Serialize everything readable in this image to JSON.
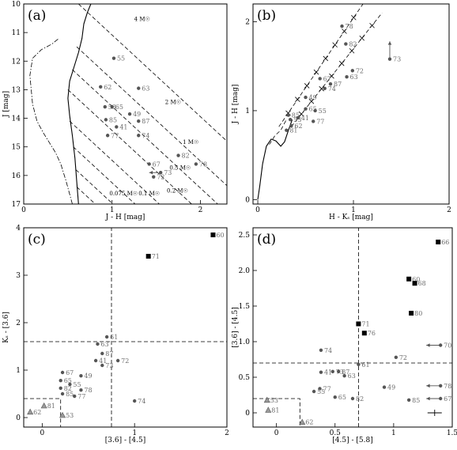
{
  "chart_data": [
    {
      "type": "scatter",
      "panel": "(a)",
      "xlabel": "J - H [mag]",
      "ylabel": "J [mag]",
      "xlim": [
        0,
        2.3
      ],
      "ylim": [
        17,
        10
      ],
      "xticks": [
        0,
        1,
        2
      ],
      "yticks": [
        10,
        11,
        12,
        13,
        14,
        15,
        16,
        17
      ],
      "mass_labels": [
        {
          "text": "4 M☉",
          "x": 1.25,
          "y": 10.6
        },
        {
          "text": "2 M☉",
          "x": 1.6,
          "y": 13.5
        },
        {
          "text": "1 M☉",
          "x": 1.8,
          "y": 14.9
        },
        {
          "text": "0.5 M☉",
          "x": 1.65,
          "y": 15.8
        },
        {
          "text": "0.2 M☉",
          "x": 1.62,
          "y": 16.6
        },
        {
          "text": "0.1 M☉",
          "x": 1.3,
          "y": 16.7
        },
        {
          "text": "0.075 M☉",
          "x": 0.97,
          "y": 16.7
        }
      ],
      "points": [
        {
          "label": "55",
          "x": 1.02,
          "y": 11.9
        },
        {
          "label": "62",
          "x": 0.87,
          "y": 12.9
        },
        {
          "label": "63",
          "x": 1.3,
          "y": 12.95
        },
        {
          "label": "53",
          "x": 0.92,
          "y": 13.6
        },
        {
          "label": "65",
          "x": 1.0,
          "y": 13.6
        },
        {
          "label": "49",
          "x": 1.2,
          "y": 13.85
        },
        {
          "label": "85",
          "x": 0.93,
          "y": 14.05
        },
        {
          "label": "87",
          "x": 1.3,
          "y": 14.1
        },
        {
          "label": "41",
          "x": 1.05,
          "y": 14.3
        },
        {
          "label": "77",
          "x": 0.95,
          "y": 14.6
        },
        {
          "label": "74",
          "x": 1.3,
          "y": 14.6
        },
        {
          "label": "82",
          "x": 1.75,
          "y": 15.3
        },
        {
          "label": "67",
          "x": 1.42,
          "y": 15.6
        },
        {
          "label": "78",
          "x": 1.95,
          "y": 15.6
        },
        {
          "label": "73",
          "x": 1.55,
          "y": 15.9
        },
        {
          "label": "72",
          "x": 1.47,
          "y": 16.05
        }
      ]
    },
    {
      "type": "scatter",
      "panel": "(b)",
      "xlabel": "H - Kₛ [mag]",
      "ylabel": "J - H [mag]",
      "xlim": [
        -0.05,
        2
      ],
      "ylim": [
        -0.05,
        2.2
      ],
      "xticks": [
        0,
        1,
        2
      ],
      "yticks": [
        0,
        1,
        2
      ],
      "points": [
        {
          "label": "78",
          "x": 0.88,
          "y": 1.95
        },
        {
          "label": "82",
          "x": 0.92,
          "y": 1.75
        },
        {
          "label": "72",
          "x": 0.99,
          "y": 1.45
        },
        {
          "label": "63",
          "x": 0.93,
          "y": 1.38
        },
        {
          "label": "73",
          "x": 1.38,
          "y": 1.58
        },
        {
          "label": "67",
          "x": 0.65,
          "y": 1.36
        },
        {
          "label": "74",
          "x": 0.7,
          "y": 1.25
        },
        {
          "label": "87",
          "x": 0.76,
          "y": 1.3
        },
        {
          "label": "49",
          "x": 0.5,
          "y": 1.15
        },
        {
          "label": "65",
          "x": 0.5,
          "y": 1.02
        },
        {
          "label": "55",
          "x": 0.6,
          "y": 1.0
        },
        {
          "label": "85",
          "x": 0.32,
          "y": 0.95
        },
        {
          "label": "53",
          "x": 0.34,
          "y": 0.9
        },
        {
          "label": "41",
          "x": 0.42,
          "y": 0.92
        },
        {
          "label": "77",
          "x": 0.58,
          "y": 0.88
        },
        {
          "label": "62",
          "x": 0.35,
          "y": 0.83
        },
        {
          "label": "81",
          "x": 0.3,
          "y": 0.78
        }
      ]
    },
    {
      "type": "scatter",
      "panel": "(c)",
      "xlabel": "[3.6] - [4.5]",
      "ylabel": "Kₛ - [3.6]",
      "xlim": [
        -0.2,
        2
      ],
      "ylim": [
        -0.2,
        4
      ],
      "xticks": [
        0,
        1,
        2
      ],
      "yticks": [
        0,
        1,
        2,
        3,
        4
      ],
      "points": [
        {
          "label": "60",
          "x": 1.85,
          "y": 3.85,
          "marker": "square"
        },
        {
          "label": "71",
          "x": 1.15,
          "y": 3.4,
          "marker": "square"
        },
        {
          "label": "61",
          "x": 0.7,
          "y": 1.7
        },
        {
          "label": "63",
          "x": 0.6,
          "y": 1.55
        },
        {
          "label": "87",
          "x": 0.65,
          "y": 1.35
        },
        {
          "label": "41",
          "x": 0.58,
          "y": 1.2
        },
        {
          "label": "72",
          "x": 0.82,
          "y": 1.2
        },
        {
          "label": "73",
          "x": 0.65,
          "y": 1.1
        },
        {
          "label": "67",
          "x": 0.22,
          "y": 0.95
        },
        {
          "label": "49",
          "x": 0.42,
          "y": 0.88
        },
        {
          "label": "65",
          "x": 0.2,
          "y": 0.78
        },
        {
          "label": "55",
          "x": 0.3,
          "y": 0.7
        },
        {
          "label": "82",
          "x": 0.2,
          "y": 0.62
        },
        {
          "label": "78",
          "x": 0.42,
          "y": 0.58
        },
        {
          "label": "85",
          "x": 0.22,
          "y": 0.5
        },
        {
          "label": "77",
          "x": 0.35,
          "y": 0.45
        },
        {
          "label": "74",
          "x": 1.0,
          "y": 0.35
        },
        {
          "label": "81",
          "x": 0.02,
          "y": 0.25,
          "marker": "triangle"
        },
        {
          "label": "62",
          "x": -0.13,
          "y": 0.12,
          "marker": "triangle"
        },
        {
          "label": "53",
          "x": 0.22,
          "y": 0.05,
          "marker": "triangle"
        }
      ]
    },
    {
      "type": "scatter",
      "panel": "(d)",
      "xlabel": "[4.5] - [5.8]",
      "ylabel": "[3.6] - [4.5]",
      "xlim": [
        -0.2,
        1.5
      ],
      "ylim": [
        -0.2,
        2.6
      ],
      "xticks": [
        0,
        0.5,
        1,
        1.5
      ],
      "xticklabels": [
        "0",
        "0.5",
        "1",
        "1.5"
      ],
      "yticks": [
        0,
        0.5,
        1,
        1.5,
        2,
        2.5
      ],
      "yticklabels": [
        "0",
        "0.5",
        "1.0",
        "1.5",
        "2.0",
        "2.5"
      ],
      "points": [
        {
          "label": "66",
          "x": 1.38,
          "y": 2.4,
          "marker": "square"
        },
        {
          "label": "60",
          "x": 1.13,
          "y": 1.88,
          "marker": "square"
        },
        {
          "label": "68",
          "x": 1.18,
          "y": 1.82,
          "marker": "square"
        },
        {
          "label": "80",
          "x": 1.15,
          "y": 1.4,
          "marker": "square"
        },
        {
          "label": "71",
          "x": 0.7,
          "y": 1.25,
          "marker": "square"
        },
        {
          "label": "76",
          "x": 0.75,
          "y": 1.12,
          "marker": "square"
        },
        {
          "label": "70",
          "x": 1.4,
          "y": 0.95
        },
        {
          "label": "74",
          "x": 0.38,
          "y": 0.88
        },
        {
          "label": "72",
          "x": 1.02,
          "y": 0.78
        },
        {
          "label": "61",
          "x": 0.7,
          "y": 0.68
        },
        {
          "label": "41",
          "x": 0.38,
          "y": 0.57
        },
        {
          "label": "73",
          "x": 0.48,
          "y": 0.58
        },
        {
          "label": "87",
          "x": 0.53,
          "y": 0.58
        },
        {
          "label": "63",
          "x": 0.58,
          "y": 0.52
        },
        {
          "label": "77",
          "x": 0.37,
          "y": 0.34
        },
        {
          "label": "55",
          "x": 0.32,
          "y": 0.3
        },
        {
          "label": "49",
          "x": 0.92,
          "y": 0.36
        },
        {
          "label": "78",
          "x": 1.4,
          "y": 0.38
        },
        {
          "label": "65",
          "x": 0.5,
          "y": 0.22
        },
        {
          "label": "82",
          "x": 0.65,
          "y": 0.2
        },
        {
          "label": "85",
          "x": 1.13,
          "y": 0.18
        },
        {
          "label": "67",
          "x": 1.4,
          "y": 0.2
        },
        {
          "label": "53",
          "x": -0.08,
          "y": 0.18,
          "marker": "triangle"
        },
        {
          "label": "81",
          "x": -0.07,
          "y": 0.04,
          "marker": "triangle"
        },
        {
          "label": "62",
          "x": 0.22,
          "y": -0.13,
          "marker": "triangle"
        }
      ]
    }
  ]
}
